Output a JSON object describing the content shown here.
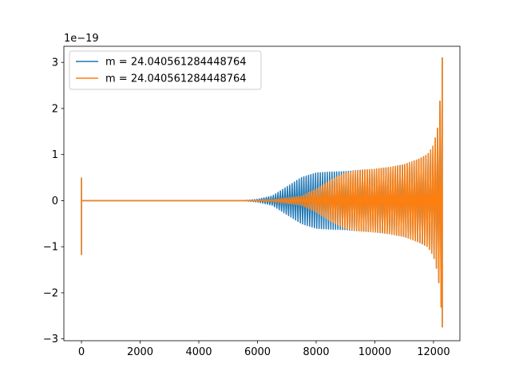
{
  "chart_data": {
    "type": "line",
    "title": "",
    "xlabel": "",
    "ylabel": "",
    "offset_text": "1e−19",
    "xlim": [
      -600,
      12900
    ],
    "ylim": [
      -3.04,
      3.35
    ],
    "x_ticks": [
      0,
      2000,
      4000,
      6000,
      8000,
      10000,
      12000
    ],
    "x_tick_labels": [
      "0",
      "2000",
      "4000",
      "6000",
      "8000",
      "10000",
      "12000"
    ],
    "y_ticks": [
      -3,
      -2,
      -1,
      0,
      1,
      2,
      3
    ],
    "y_tick_labels": [
      "−3",
      "−2",
      "−1",
      "0",
      "1",
      "2",
      "3"
    ],
    "grid": false,
    "legend_position": "upper-left",
    "series": [
      {
        "name": "m = 24.040561284448764",
        "color": "#1f77b4",
        "initial_spike": {
          "x": 0,
          "max": 0.5,
          "min": -1.17
        },
        "envelope": {
          "x": [
            0,
            5500,
            6000,
            6500,
            7000,
            7500,
            8000,
            8500,
            9000,
            9500,
            10000,
            10500,
            11000,
            11500,
            11800,
            12000,
            12150,
            12250,
            12300
          ],
          "max": [
            0,
            0.0,
            0.03,
            0.1,
            0.3,
            0.5,
            0.6,
            0.62,
            0.63,
            0.66,
            0.68,
            0.72,
            0.78,
            0.9,
            1.0,
            1.2,
            1.6,
            2.4,
            3.1
          ],
          "min": [
            0,
            0.0,
            -0.03,
            -0.1,
            -0.3,
            -0.5,
            -0.6,
            -0.62,
            -0.63,
            -0.66,
            -0.68,
            -0.72,
            -0.78,
            -0.9,
            -1.0,
            -1.2,
            -1.6,
            -2.2,
            -2.75
          ]
        }
      },
      {
        "name": "m = 24.040561284448764",
        "color": "#ff7f0e",
        "initial_spike": {
          "x": 0,
          "max": 0.5,
          "min": -1.17
        },
        "envelope": {
          "x": [
            0,
            5500,
            6500,
            7500,
            8000,
            8500,
            9000,
            9500,
            10000,
            10500,
            11000,
            11500,
            11800,
            12000,
            12150,
            12250,
            12300
          ],
          "max": [
            0,
            0.0,
            0.02,
            0.1,
            0.25,
            0.45,
            0.6,
            0.66,
            0.68,
            0.72,
            0.78,
            0.9,
            1.0,
            1.2,
            1.6,
            2.4,
            3.1
          ],
          "min": [
            0,
            0.0,
            -0.02,
            -0.1,
            -0.25,
            -0.45,
            -0.6,
            -0.66,
            -0.68,
            -0.72,
            -0.78,
            -0.9,
            -1.0,
            -1.2,
            -1.6,
            -2.2,
            -2.75
          ]
        }
      }
    ]
  }
}
